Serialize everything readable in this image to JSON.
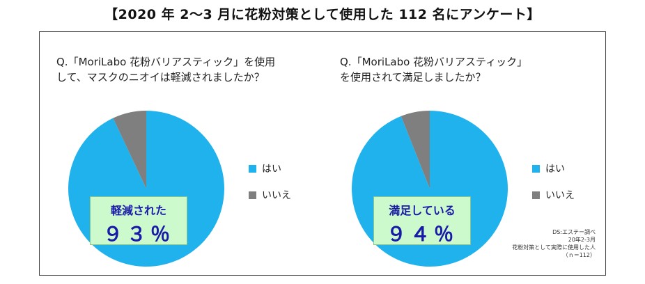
{
  "title": "【2020 年 2〜3 月に花粉対策として使用した 112 名にアンケート】",
  "colors": {
    "yes": "#1fb2ec",
    "no": "#7f7f7f"
  },
  "chart_data": [
    {
      "type": "pie",
      "question_line1": "Q.「MoriLabo 花粉バリアスティック」を使用",
      "question_line2": "して、マスクのニオイは軽減されましたか？",
      "categories": [
        "はい",
        "いいえ"
      ],
      "values": [
        93,
        7
      ],
      "legend": [
        "はい",
        "いいえ"
      ],
      "legend_position": "right",
      "callout_label": "軽減された",
      "callout_value": "９３％"
    },
    {
      "type": "pie",
      "question_line1": "Q.「MoriLabo 花粉バリアスティック」",
      "question_line2": "を使用されて満足しましたか？",
      "categories": [
        "はい",
        "いいえ"
      ],
      "values": [
        94,
        6
      ],
      "legend": [
        "はい",
        "いいえ"
      ],
      "legend_position": "right",
      "callout_label": "満足している",
      "callout_value": "９４％"
    }
  ],
  "source": {
    "line1": "DS:エステー調べ",
    "line2": "20年2-3月",
    "line3": "花粉対策として実際に使用した人",
    "line4": "（ｎ＝112）"
  }
}
